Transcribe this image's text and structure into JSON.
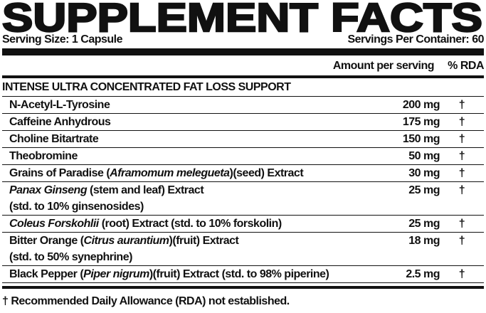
{
  "title": "SUPPLEMENT FACTS",
  "serving_size": "Serving Size: 1 Capsule",
  "servings_per_container": "Servings Per Container: 60",
  "header": {
    "amount": "Amount per serving",
    "rda": "% RDA"
  },
  "section_title": "INTENSE ULTRA CONCENTRATED FAT LOSS SUPPORT",
  "rows": [
    {
      "lines": [
        [
          {
            "text": "N-Acetyl-L-Tyrosine"
          }
        ]
      ],
      "amount": "200 mg",
      "rda": "†"
    },
    {
      "lines": [
        [
          {
            "text": "Caffeine Anhydrous"
          }
        ]
      ],
      "amount": "175 mg",
      "rda": "†"
    },
    {
      "lines": [
        [
          {
            "text": "Choline Bitartrate"
          }
        ]
      ],
      "amount": "150 mg",
      "rda": "†"
    },
    {
      "lines": [
        [
          {
            "text": "Theobromine"
          }
        ]
      ],
      "amount": "50 mg",
      "rda": "†"
    },
    {
      "lines": [
        [
          {
            "text": "Grains of Paradise ("
          },
          {
            "text": "Aframomum melegueta",
            "italic": true
          },
          {
            "text": ")(seed) Extract"
          }
        ]
      ],
      "amount": "30 mg",
      "rda": "†"
    },
    {
      "lines": [
        [
          {
            "text": "Panax Ginseng",
            "italic": true
          },
          {
            "text": " (stem and leaf) Extract"
          }
        ],
        [
          {
            "text": "(std. to 10% ginsenosides)"
          }
        ]
      ],
      "amount": "25 mg",
      "rda": "†"
    },
    {
      "lines": [
        [
          {
            "text": "Coleus Forskohlii",
            "italic": true
          },
          {
            "text": " (root) Extract (std. to 10% forskolin)"
          }
        ]
      ],
      "amount": "25 mg",
      "rda": "†"
    },
    {
      "lines": [
        [
          {
            "text": "Bitter Orange ("
          },
          {
            "text": "Citrus aurantium",
            "italic": true
          },
          {
            "text": ")(fruit) Extract"
          }
        ],
        [
          {
            "text": "(std. to 50% synephrine)"
          }
        ]
      ],
      "amount": "18 mg",
      "rda": "†"
    },
    {
      "lines": [
        [
          {
            "text": "Black Pepper ("
          },
          {
            "text": "Piper nigrum",
            "italic": true
          },
          {
            "text": ")(fruit) Extract (std. to 98% piperine)"
          }
        ]
      ],
      "amount": "2.5 mg",
      "rda": "†"
    }
  ],
  "footnote": "† Recommended Daily Allowance (RDA) not established."
}
